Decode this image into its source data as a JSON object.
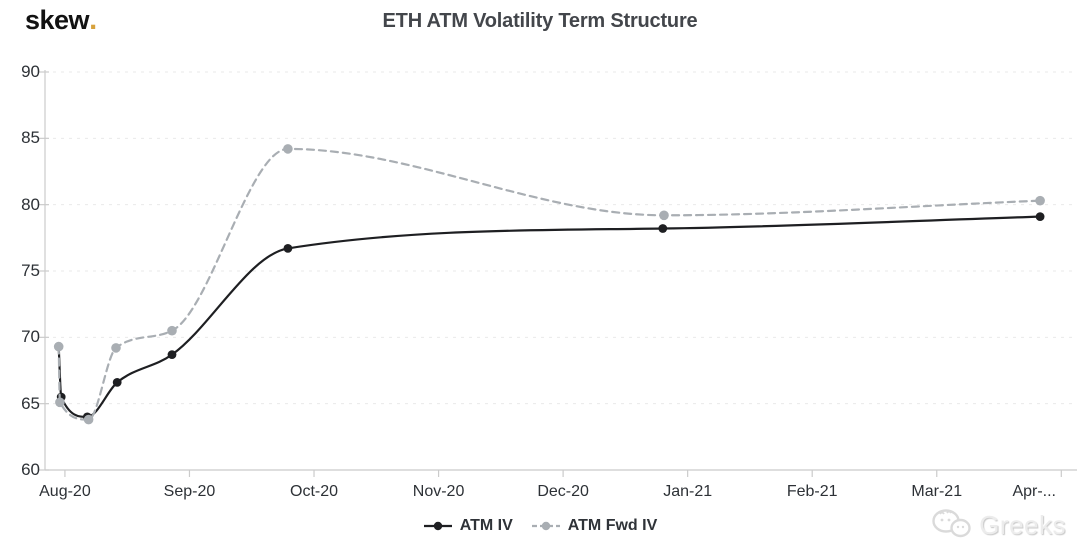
{
  "header": {
    "logo_text": "skew",
    "logo_dot": ".",
    "title": "ETH ATM Volatility Term Structure"
  },
  "watermark": {
    "label": "Greeks",
    "icon": "wechat-icon"
  },
  "colors": {
    "atm_iv": "#1e1f22",
    "atm_fwd_iv": "#a9aeb3",
    "grid": "#e9e9e9",
    "axis": "#cbcbcb",
    "tick_label": "#2d3136",
    "title": "#43464b",
    "logo_dot": "#d7a23c",
    "watermark": "#ececec"
  },
  "chart_data": {
    "type": "line",
    "title": "ETH ATM Volatility Term Structure",
    "xlabel": "",
    "ylabel": "",
    "ylim": [
      60,
      90
    ],
    "y_ticks": [
      60,
      65,
      70,
      75,
      80,
      85,
      90
    ],
    "xlim": [
      -0.16,
      8.11
    ],
    "x_unit": "months after Aug-20 tick (positions read from plot)",
    "x_ticks": [
      {
        "label": "Aug-20",
        "m": 0
      },
      {
        "label": "Sep-20",
        "m": 1
      },
      {
        "label": "Oct-20",
        "m": 2
      },
      {
        "label": "Nov-20",
        "m": 3
      },
      {
        "label": "Dec-20",
        "m": 4
      },
      {
        "label": "Jan-21",
        "m": 5
      },
      {
        "label": "Feb-21",
        "m": 6
      },
      {
        "label": "Mar-21",
        "m": 7
      },
      {
        "label": "Apr-...",
        "m": 8
      }
    ],
    "grid": "horizontal-dashed",
    "legend_position": "bottom-center",
    "series": [
      {
        "name": "ATM IV",
        "color": "#1e1f22",
        "style": "solid",
        "marker_radius": 4.4,
        "points": [
          [
            -0.05,
            69.3
          ],
          [
            -0.03,
            65.5
          ],
          [
            0.18,
            64.0
          ],
          [
            0.42,
            66.6
          ],
          [
            0.86,
            68.7
          ],
          [
            1.79,
            76.7
          ],
          [
            4.8,
            78.2
          ],
          [
            7.83,
            79.1
          ]
        ]
      },
      {
        "name": "ATM Fwd IV",
        "color": "#a9aeb3",
        "style": "dashed",
        "marker_radius": 4.8,
        "points": [
          [
            -0.05,
            69.3
          ],
          [
            -0.04,
            65.1
          ],
          [
            0.19,
            63.8
          ],
          [
            0.41,
            69.2
          ],
          [
            0.86,
            70.5
          ],
          [
            1.79,
            84.2
          ],
          [
            4.81,
            79.2
          ],
          [
            7.83,
            80.3
          ]
        ]
      }
    ]
  }
}
